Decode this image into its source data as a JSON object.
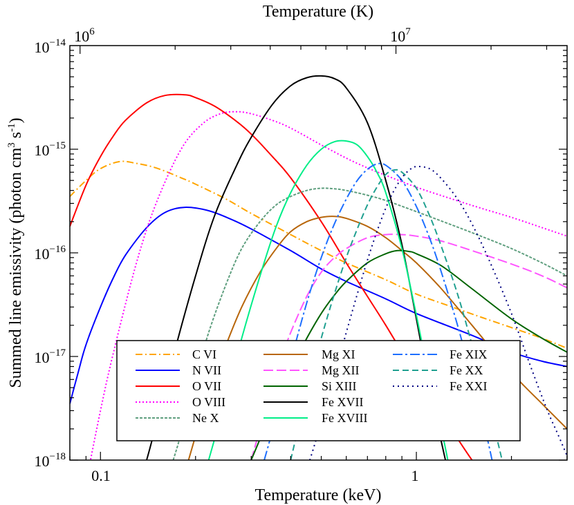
{
  "chart_data": {
    "type": "line",
    "xlabel": "Temperature (keV)",
    "x2label": "Temperature (K)",
    "ylabel": {
      "main": "Summed line emissivity (photon cm",
      "sup1": "3",
      "mid": " s",
      "sup2": "-1",
      "end": ")"
    },
    "x_scale": "log",
    "y_scale": "log",
    "xlim": [
      0.08,
      3.0
    ],
    "ylim": [
      1e-18,
      1e-14
    ],
    "x_ticks": [
      {
        "value": 0.1,
        "label": "0.1"
      },
      {
        "value": 1,
        "label": "1"
      }
    ],
    "x2_ticks": [
      {
        "value": 1000000,
        "base": "10",
        "exp": "6"
      },
      {
        "value": 10000000,
        "base": "10",
        "exp": "7"
      }
    ],
    "y_ticks": [
      {
        "value": 1e-18,
        "base": "10",
        "exp": "−18"
      },
      {
        "value": 1e-17,
        "base": "10",
        "exp": "−17"
      },
      {
        "value": 1e-16,
        "base": "10",
        "exp": "−16"
      },
      {
        "value": 1e-15,
        "base": "10",
        "exp": "−15"
      },
      {
        "value": 1e-14,
        "base": "10",
        "exp": "−14"
      }
    ],
    "grid": false,
    "legend_position": "bottom-center",
    "series": [
      {
        "name": "C VI",
        "color": "#FFA500",
        "dash": "dashdot",
        "x": [
          0.08,
          0.09,
          0.1,
          0.115,
          0.13,
          0.15,
          0.18,
          0.2,
          0.25,
          0.3,
          0.4,
          0.5,
          0.6,
          0.8,
          1.0,
          1.3,
          1.6,
          2.0,
          2.5,
          3.0
        ],
        "y": [
          3.5e-16,
          5e-16,
          6.5e-16,
          7.6e-16,
          7.3e-16,
          6.6e-16,
          5.3e-16,
          4.6e-16,
          3.3e-16,
          2.4e-16,
          1.5e-16,
          1.05e-16,
          8e-17,
          5.5e-17,
          4e-17,
          3e-17,
          2.4e-17,
          1.9e-17,
          1.5e-17,
          1.2e-17
        ]
      },
      {
        "name": "N VII",
        "color": "#0000FF",
        "dash": "solid",
        "x": [
          0.08,
          0.085,
          0.09,
          0.1,
          0.11,
          0.12,
          0.14,
          0.16,
          0.185,
          0.22,
          0.26,
          0.3,
          0.4,
          0.5,
          0.6,
          0.8,
          1.0,
          1.5,
          2.0,
          2.5,
          3.0
        ],
        "y": [
          3.5e-18,
          7e-18,
          1.3e-17,
          3e-17,
          5.8e-17,
          9.5e-17,
          1.75e-16,
          2.45e-16,
          2.75e-16,
          2.55e-16,
          2.1e-16,
          1.7e-16,
          1.05e-16,
          7e-17,
          5.3e-17,
          3.6e-17,
          2.6e-17,
          1.6e-17,
          1.1e-17,
          9e-18,
          8e-18
        ]
      },
      {
        "name": "O VII",
        "color": "#FF0000",
        "dash": "solid",
        "x": [
          0.08,
          0.09,
          0.1,
          0.11,
          0.12,
          0.14,
          0.16,
          0.185,
          0.2,
          0.23,
          0.27,
          0.3,
          0.35,
          0.4,
          0.5,
          0.6,
          0.7,
          0.8,
          1.0,
          1.2,
          1.5,
          2.0
        ],
        "y": [
          1.8e-16,
          4.5e-16,
          8.5e-16,
          1.35e-15,
          1.9e-15,
          2.8e-15,
          3.3e-15,
          3.35e-15,
          3.15e-15,
          2.6e-15,
          1.85e-15,
          1.4e-15,
          8.5e-16,
          5.3e-16,
          2e-16,
          8e-17,
          3.8e-17,
          2e-17,
          6.5e-18,
          2.8e-18,
          1e-18,
          3e-19
        ]
      },
      {
        "name": "O VIII",
        "color": "#FF00FF",
        "dash": "dot",
        "x": [
          0.09,
          0.1,
          0.11,
          0.13,
          0.15,
          0.18,
          0.21,
          0.24,
          0.27,
          0.3,
          0.35,
          0.4,
          0.5,
          0.6,
          0.7,
          0.8,
          1.0,
          1.3,
          1.6,
          2.0,
          2.5,
          3.0
        ],
        "y": [
          6e-19,
          3e-18,
          1.1e-17,
          8e-17,
          3e-16,
          1e-15,
          1.75e-15,
          2.2e-15,
          2.3e-15,
          2.2e-15,
          1.9e-15,
          1.6e-15,
          1.1e-15,
          8.2e-16,
          6.6e-16,
          5.6e-16,
          4.3e-16,
          3.3e-16,
          2.7e-16,
          2.2e-16,
          1.75e-16,
          1.45e-16
        ]
      },
      {
        "name": "Ne X",
        "color": "#5F9F7F",
        "dash": "dashfine",
        "x": [
          0.17,
          0.18,
          0.2,
          0.22,
          0.25,
          0.28,
          0.32,
          0.36,
          0.4,
          0.45,
          0.5,
          0.55,
          0.6,
          0.7,
          0.8,
          1.0,
          1.3,
          1.6,
          2.0,
          2.5,
          3.0
        ],
        "y": [
          1e-18,
          1.8e-18,
          6e-18,
          1.7e-17,
          5e-17,
          1.1e-16,
          2e-16,
          2.9e-16,
          3.5e-16,
          4e-16,
          4.2e-16,
          4.15e-16,
          4e-16,
          3.6e-16,
          3.2e-16,
          2.5e-16,
          1.85e-16,
          1.45e-16,
          1.1e-16,
          8e-17,
          6e-17
        ]
      },
      {
        "name": "Mg XI",
        "color": "#B8660B",
        "dash": "solid",
        "x": [
          0.19,
          0.22,
          0.25,
          0.28,
          0.32,
          0.36,
          0.4,
          0.45,
          0.5,
          0.55,
          0.6,
          0.7,
          0.8,
          0.9,
          1.0,
          1.2,
          1.5,
          2.0,
          2.5,
          3.0
        ],
        "y": [
          1e-18,
          4.5e-18,
          1.3e-17,
          3e-17,
          6.5e-17,
          1.1e-16,
          1.6e-16,
          2e-16,
          2.2e-16,
          2.25e-16,
          2.15e-16,
          1.8e-16,
          1.4e-16,
          1.05e-16,
          8e-17,
          4.5e-17,
          2e-17,
          7e-18,
          3.5e-18,
          2e-18
        ]
      },
      {
        "name": "Mg XII",
        "color": "#FF55FF",
        "dash": "longdash",
        "x": [
          0.3,
          0.33,
          0.36,
          0.4,
          0.45,
          0.5,
          0.55,
          0.6,
          0.7,
          0.8,
          0.9,
          1.0,
          1.2,
          1.5,
          2.0,
          2.5,
          3.0
        ],
        "y": [
          1e-18,
          2.8e-18,
          7e-18,
          1.7e-17,
          3.8e-17,
          6.5e-17,
          9e-17,
          1.1e-16,
          1.4e-16,
          1.5e-16,
          1.5e-16,
          1.45e-16,
          1.3e-16,
          1.05e-16,
          7.8e-17,
          6e-17,
          4.6e-17
        ]
      },
      {
        "name": "Si XIII",
        "color": "#006400",
        "dash": "solid",
        "x": [
          0.3,
          0.33,
          0.36,
          0.4,
          0.45,
          0.5,
          0.55,
          0.6,
          0.7,
          0.8,
          0.87,
          0.95,
          1.0,
          1.2,
          1.5,
          2.0,
          2.5,
          3.0
        ],
        "y": [
          1e-18,
          2e-18,
          3.8e-18,
          7.5e-18,
          1.5e-17,
          2.6e-17,
          3.9e-17,
          5.3e-17,
          8e-17,
          9.8e-17,
          1.05e-16,
          1.03e-16,
          9.8e-17,
          7.5e-17,
          4.5e-17,
          2.3e-17,
          1.5e-17,
          1.1e-17
        ]
      },
      {
        "name": "Fe XVII",
        "color": "#000000",
        "dash": "solid",
        "x": [
          0.13,
          0.14,
          0.15,
          0.17,
          0.2,
          0.23,
          0.27,
          0.3,
          0.35,
          0.4,
          0.45,
          0.5,
          0.55,
          0.6,
          0.7,
          0.8,
          0.9,
          1.0,
          1.1,
          1.2,
          1.35
        ],
        "y": [
          5e-19,
          1e-18,
          2.2e-18,
          1e-17,
          6e-17,
          2.3e-16,
          7e-16,
          1.3e-15,
          2.7e-15,
          4.1e-15,
          4.9e-15,
          5.1e-15,
          4.8e-15,
          3.9e-15,
          1.8e-15,
          5e-16,
          1.2e-16,
          2.3e-17,
          5e-18,
          1.5e-18,
          3e-19
        ]
      },
      {
        "name": "Fe XVIII",
        "color": "#00EE88",
        "dash": "solid",
        "x": [
          0.22,
          0.25,
          0.28,
          0.32,
          0.36,
          0.4,
          0.45,
          0.5,
          0.55,
          0.6,
          0.65,
          0.7,
          0.75,
          0.8,
          0.9,
          1.0,
          1.1,
          1.2,
          1.3
        ],
        "y": [
          1e-18,
          4e-18,
          1.5e-17,
          6e-17,
          1.8e-16,
          3.8e-16,
          7e-16,
          1e-15,
          1.18e-15,
          1.2e-15,
          1.1e-15,
          8.5e-16,
          6e-16,
          3.8e-16,
          1.1e-16,
          2.5e-17,
          6e-18,
          2e-18,
          6e-19
        ]
      },
      {
        "name": "Fe XIX",
        "color": "#1E6FFF",
        "dash": "dashdotlong",
        "x": [
          0.33,
          0.36,
          0.4,
          0.45,
          0.5,
          0.55,
          0.6,
          0.65,
          0.7,
          0.75,
          0.8,
          0.9,
          1.0,
          1.1,
          1.2,
          1.35,
          1.5,
          1.65,
          1.8
        ],
        "y": [
          1e-18,
          2.6e-18,
          9e-18,
          3.3e-17,
          9e-17,
          1.9e-16,
          3.3e-16,
          5e-16,
          6.4e-16,
          7.2e-16,
          7e-16,
          5e-16,
          2.8e-16,
          1.4e-16,
          6.5e-17,
          2e-17,
          6e-18,
          2e-18,
          6e-19
        ]
      },
      {
        "name": "Fe XX",
        "color": "#20A090",
        "dash": "dash",
        "x": [
          0.4,
          0.45,
          0.5,
          0.55,
          0.6,
          0.65,
          0.7,
          0.75,
          0.8,
          0.85,
          0.9,
          1.0,
          1.1,
          1.2,
          1.35,
          1.5,
          1.65,
          1.8,
          1.9
        ],
        "y": [
          1e-18,
          4.5e-18,
          1.5e-17,
          4e-17,
          9e-17,
          1.7e-16,
          2.9e-16,
          4.3e-16,
          5.7e-16,
          6.3e-16,
          6e-16,
          4.2e-16,
          2.3e-16,
          1.15e-16,
          4e-17,
          1.3e-17,
          4.5e-18,
          1.6e-18,
          8e-19
        ]
      },
      {
        "name": "Fe XXI",
        "color": "#000080",
        "dash": "densedot",
        "x": [
          0.46,
          0.5,
          0.55,
          0.6,
          0.65,
          0.7,
          0.75,
          0.8,
          0.85,
          0.9,
          0.95,
          1.0,
          1.1,
          1.2,
          1.35,
          1.5,
          1.7,
          2.0,
          2.3,
          2.6,
          2.8,
          3.0
        ],
        "y": [
          1e-18,
          2.3e-18,
          6.5e-18,
          1.7e-17,
          4e-17,
          8.5e-17,
          1.6e-16,
          2.7e-16,
          4e-16,
          5.3e-16,
          6.3e-16,
          6.8e-16,
          6.5e-16,
          5.2e-16,
          3.3e-16,
          1.9e-16,
          8.5e-17,
          2.6e-17,
          8e-18,
          3e-18,
          1.8e-18,
          1.1e-18
        ]
      }
    ]
  }
}
